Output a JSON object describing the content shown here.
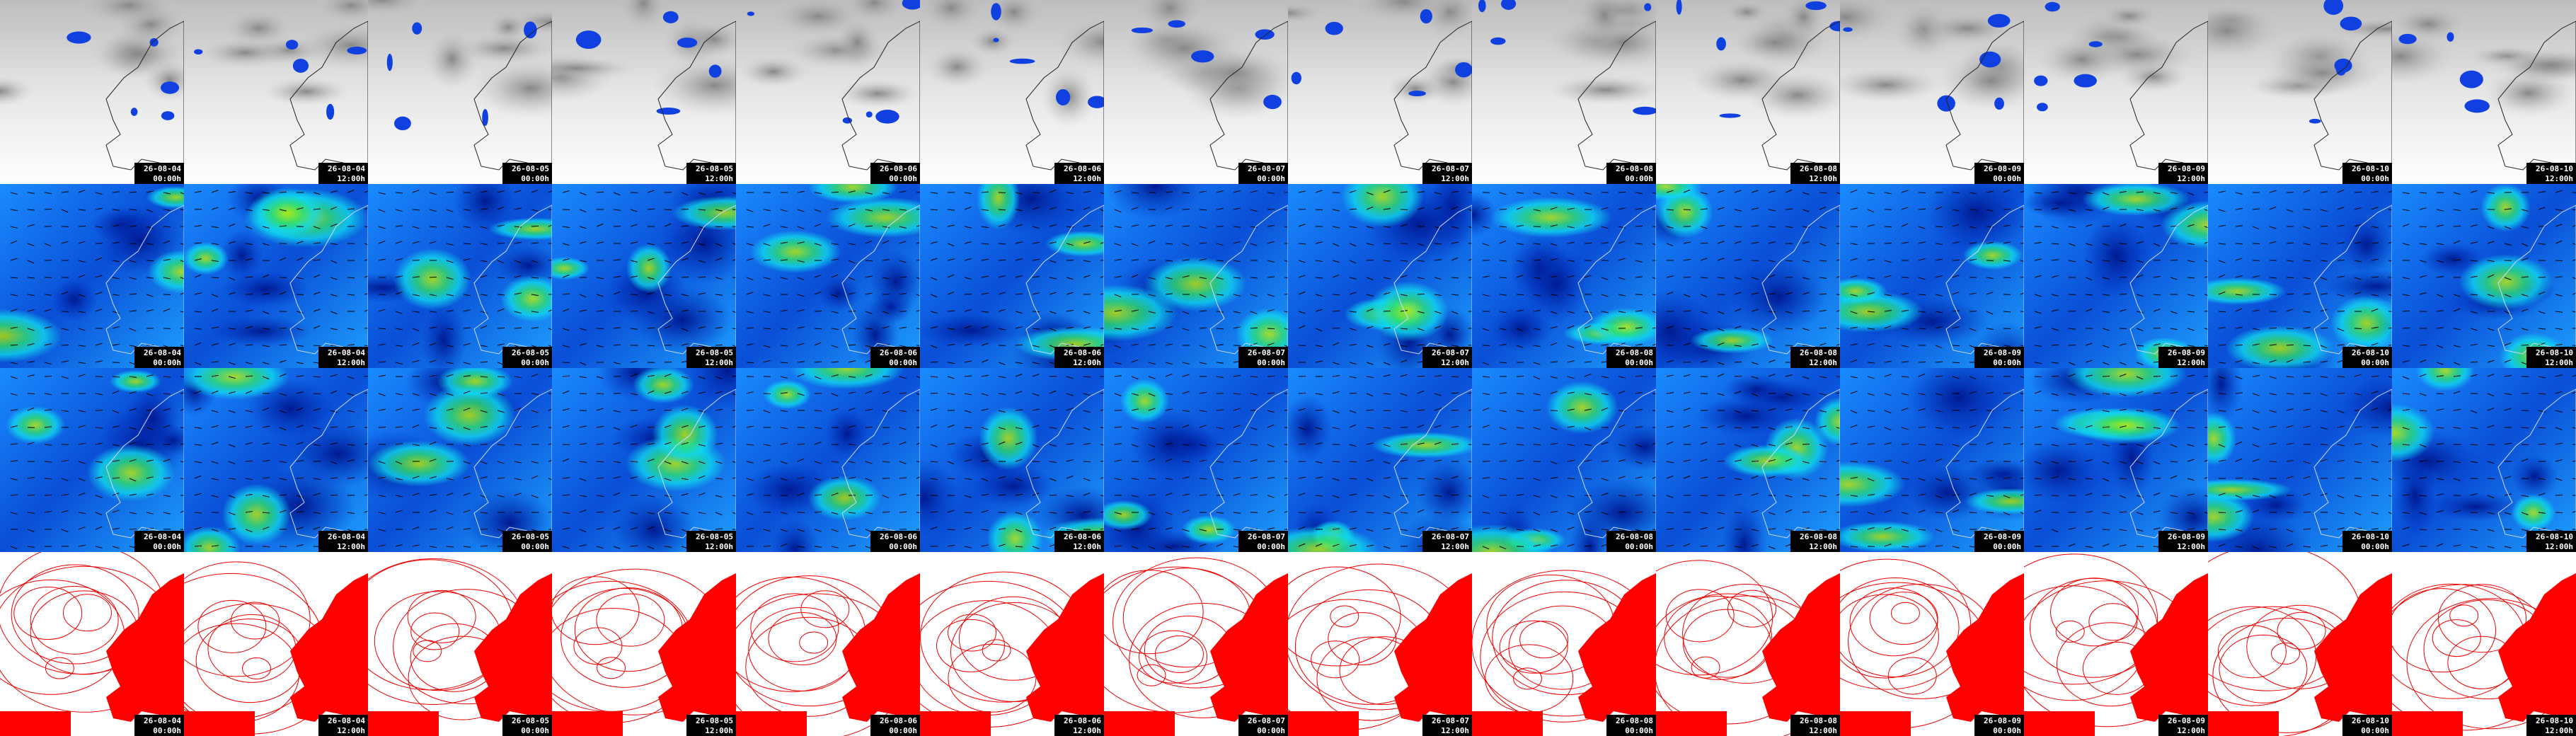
{
  "columns": [
    {
      "date": "26-08-04",
      "time": "00:00h"
    },
    {
      "date": "26-08-04",
      "time": "12:00h"
    },
    {
      "date": "26-08-05",
      "time": "00:00h"
    },
    {
      "date": "26-08-05",
      "time": "12:00h"
    },
    {
      "date": "26-08-06",
      "time": "00:00h"
    },
    {
      "date": "26-08-06",
      "time": "12:00h"
    },
    {
      "date": "26-08-07",
      "time": "00:00h"
    },
    {
      "date": "26-08-07",
      "time": "12:00h"
    },
    {
      "date": "26-08-08",
      "time": "00:00h"
    },
    {
      "date": "26-08-08",
      "time": "12:00h"
    },
    {
      "date": "26-08-09",
      "time": "00:00h"
    },
    {
      "date": "26-08-09",
      "time": "12:00h"
    },
    {
      "date": "26-08-10",
      "time": "00:00h"
    },
    {
      "date": "26-08-10",
      "time": "12:00h"
    }
  ]
}
